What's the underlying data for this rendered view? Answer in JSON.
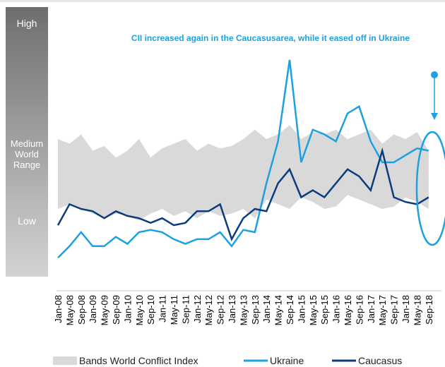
{
  "chart_data": {
    "type": "line",
    "title": "CII increased again in the Caucasusarea, while it eased off in Ukraine",
    "scale_labels": [
      "High",
      "Medium World Range",
      "Low"
    ],
    "categories": [
      "Jan-08",
      "May-08",
      "Sep-08",
      "Jan-09",
      "May-09",
      "Sep-09",
      "Jan-10",
      "May-10",
      "Sep-10",
      "Jan-11",
      "May-11",
      "Sep-11",
      "Jan-12",
      "May-12",
      "Sep-12",
      "Jan-13",
      "May-13",
      "Sep-13",
      "Jan-14",
      "May-14",
      "Sep-14",
      "Jan-15",
      "May-15",
      "Sep-15",
      "Jan-16",
      "May-16",
      "Sep-16",
      "Jan-17",
      "May-17",
      "Sep-17",
      "Jan-18",
      "May-18",
      "Sep-18"
    ],
    "ylim": [
      0,
      100
    ],
    "series": [
      {
        "name": "Bands World Conflict Index",
        "color": "#d9d9d9",
        "low": [
          30,
          32,
          30,
          28,
          26,
          28,
          27,
          25,
          28,
          30,
          27,
          29,
          26,
          29,
          27,
          28,
          30,
          26,
          34,
          32,
          30,
          35,
          33,
          30,
          31,
          36,
          34,
          32,
          30,
          31,
          35,
          33,
          30
        ],
        "high": [
          60,
          58,
          62,
          55,
          57,
          52,
          55,
          60,
          52,
          56,
          58,
          60,
          55,
          58,
          56,
          57,
          60,
          64,
          60,
          62,
          66,
          60,
          63,
          62,
          64,
          60,
          62,
          64,
          58,
          62,
          60,
          63,
          55
        ]
      },
      {
        "name": "Ukraine",
        "color": "#1ba1e2",
        "values": [
          9,
          14,
          20,
          14,
          14,
          18,
          15,
          20,
          21,
          20,
          17,
          15,
          17,
          17,
          20,
          14,
          21,
          20,
          41,
          59,
          94,
          50,
          64,
          62,
          59,
          71,
          74,
          59,
          50,
          50,
          53,
          56,
          55
        ]
      },
      {
        "name": "Caucasus",
        "color": "#0b3c7d",
        "values": [
          23,
          32,
          30,
          29,
          26,
          29,
          27,
          26,
          24,
          26,
          23,
          24,
          29,
          29,
          32,
          17,
          26,
          30,
          29,
          41,
          47,
          35,
          38,
          35,
          41,
          47,
          44,
          38,
          55,
          35,
          33,
          32,
          35
        ]
      }
    ]
  }
}
